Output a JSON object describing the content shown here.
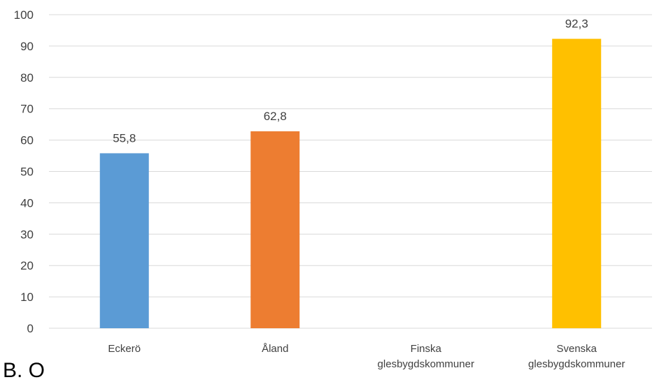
{
  "chart_data": {
    "type": "bar",
    "categories": [
      [
        "Eckerö"
      ],
      [
        "Åland"
      ],
      [
        "Finska",
        "glesbygdskommuner"
      ],
      [
        "Svenska",
        "glesbygdskommuner"
      ]
    ],
    "values": [
      55.8,
      62.8,
      null,
      92.3
    ],
    "data_labels": [
      "55,8",
      "62,8",
      "",
      "92,3"
    ],
    "colors": [
      "#5b9bd5",
      "#ed7d31",
      "#a5a5a5",
      "#ffc000"
    ],
    "ylim": [
      0,
      100
    ],
    "yticks": [
      0,
      10,
      20,
      30,
      40,
      50,
      60,
      70,
      80,
      90,
      100
    ],
    "grid": true,
    "legend": "none"
  },
  "footer_text": "B. O"
}
